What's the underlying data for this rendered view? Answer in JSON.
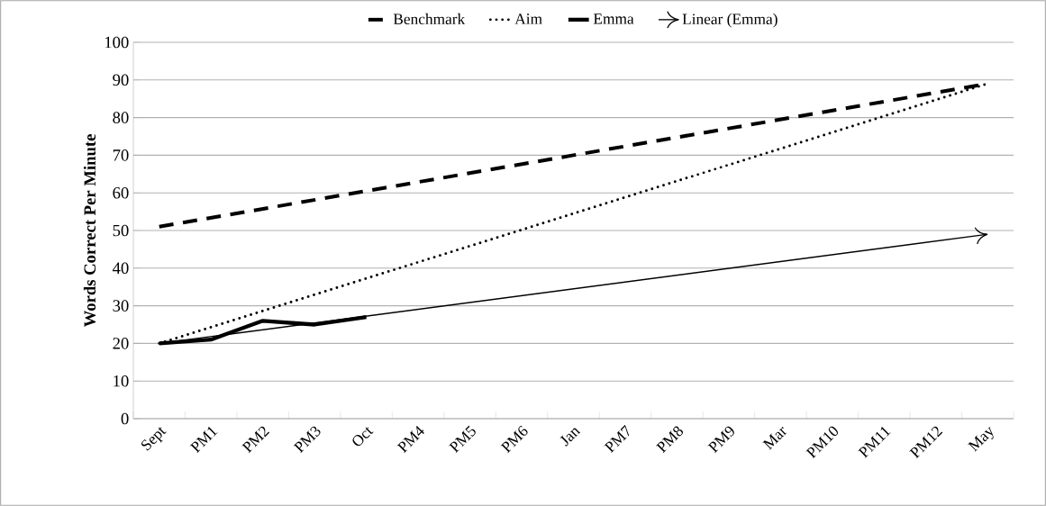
{
  "chart_data": {
    "type": "line",
    "ylabel": "Words Correct Per Minute",
    "categories": [
      "Sept",
      "PM1",
      "PM2",
      "PM3",
      "Oct",
      "PM4",
      "PM5",
      "PM6",
      "Jan",
      "PM7",
      "PM8",
      "PM9",
      "Mar",
      "PM10",
      "PM11",
      "PM12",
      "May"
    ],
    "series": [
      {
        "name": "Benchmark",
        "color": "#000000",
        "line_style": "dashed",
        "values": [
          51,
          null,
          null,
          null,
          null,
          null,
          null,
          null,
          70,
          null,
          null,
          null,
          null,
          null,
          null,
          null,
          89
        ]
      },
      {
        "name": "Aim",
        "color": "#000000",
        "line_style": "dotted",
        "values": [
          20,
          null,
          null,
          null,
          null,
          null,
          null,
          null,
          null,
          null,
          null,
          null,
          null,
          null,
          null,
          null,
          89
        ]
      },
      {
        "name": "Emma",
        "color": "#000000",
        "line_style": "solid",
        "values": [
          20,
          21,
          26,
          25,
          27,
          null,
          null,
          null,
          null,
          null,
          null,
          null,
          null,
          null,
          null,
          null,
          null
        ]
      },
      {
        "name": "Linear  (Emma)",
        "color": "#000000",
        "line_style": "solid",
        "values": [
          20,
          null,
          null,
          null,
          null,
          null,
          null,
          null,
          null,
          null,
          null,
          null,
          null,
          null,
          null,
          null,
          49
        ]
      }
    ],
    "ylim": [
      0,
      100
    ],
    "yticks": [
      0,
      10,
      20,
      30,
      40,
      50,
      60,
      70,
      80,
      90,
      100
    ],
    "grid": "y",
    "legend": "top"
  }
}
